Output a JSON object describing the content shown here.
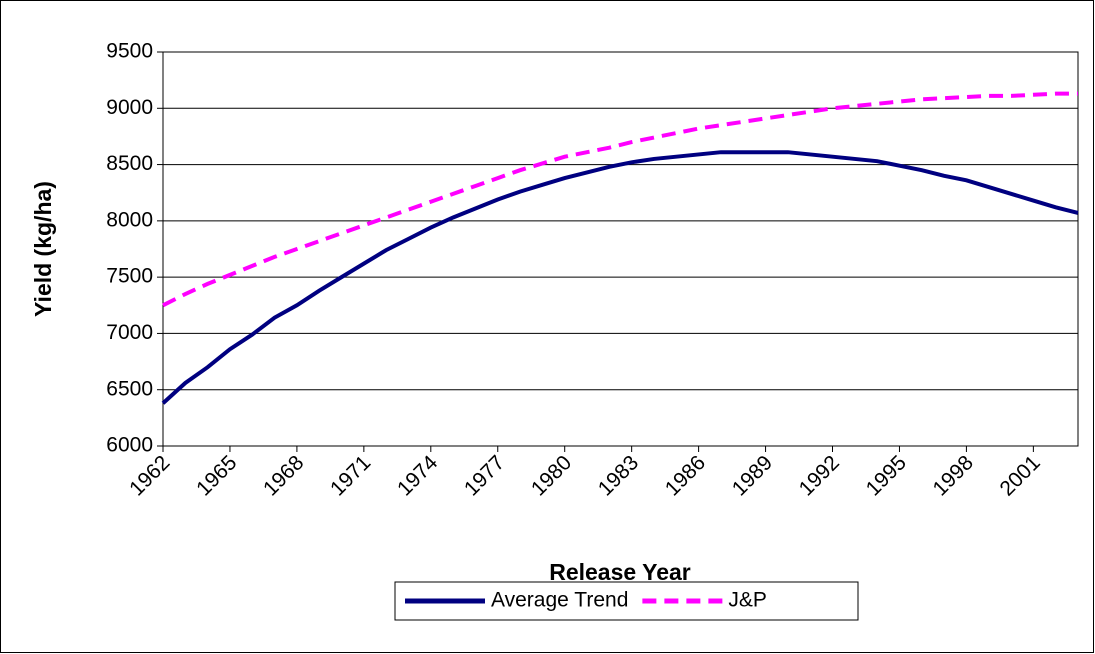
{
  "chart_data": {
    "type": "line",
    "x_label": "Release Year",
    "y_label": "Yield (kg/ha)",
    "x": [
      1962,
      1963,
      1964,
      1965,
      1966,
      1967,
      1968,
      1969,
      1970,
      1971,
      1972,
      1973,
      1974,
      1975,
      1976,
      1977,
      1978,
      1979,
      1980,
      1981,
      1982,
      1983,
      1984,
      1985,
      1986,
      1987,
      1988,
      1989,
      1990,
      1991,
      1992,
      1993,
      1994,
      1995,
      1996,
      1997,
      1998,
      1999,
      2000,
      2001,
      2002,
      2003
    ],
    "xlim": [
      1962,
      2003
    ],
    "xticks": [
      1962,
      1965,
      1968,
      1971,
      1974,
      1977,
      1980,
      1983,
      1986,
      1989,
      1992,
      1995,
      1998,
      2001
    ],
    "ylim": [
      6000,
      9500
    ],
    "yticks": [
      6000,
      6500,
      7000,
      7500,
      8000,
      8500,
      9000,
      9500
    ],
    "grid": true,
    "legend": "bottom",
    "series": [
      {
        "name": "Average Trend",
        "color": "#000080",
        "dashed": false,
        "values": [
          6380,
          6560,
          6700,
          6860,
          6990,
          7140,
          7250,
          7380,
          7500,
          7620,
          7740,
          7840,
          7940,
          8030,
          8110,
          8190,
          8260,
          8320,
          8380,
          8430,
          8480,
          8520,
          8550,
          8570,
          8590,
          8610,
          8610,
          8610,
          8610,
          8590,
          8570,
          8550,
          8530,
          8490,
          8450,
          8400,
          8360,
          8300,
          8240,
          8180,
          8120,
          8070
        ]
      },
      {
        "name": "J&P",
        "color": "#ff00ff",
        "dashed": true,
        "values": [
          7250,
          7350,
          7440,
          7520,
          7600,
          7680,
          7750,
          7820,
          7890,
          7960,
          8030,
          8100,
          8170,
          8240,
          8310,
          8380,
          8450,
          8510,
          8570,
          8610,
          8650,
          8700,
          8740,
          8780,
          8820,
          8850,
          8880,
          8910,
          8940,
          8970,
          9000,
          9020,
          9040,
          9060,
          9080,
          9090,
          9100,
          9110,
          9110,
          9120,
          9130,
          9130
        ]
      }
    ]
  }
}
